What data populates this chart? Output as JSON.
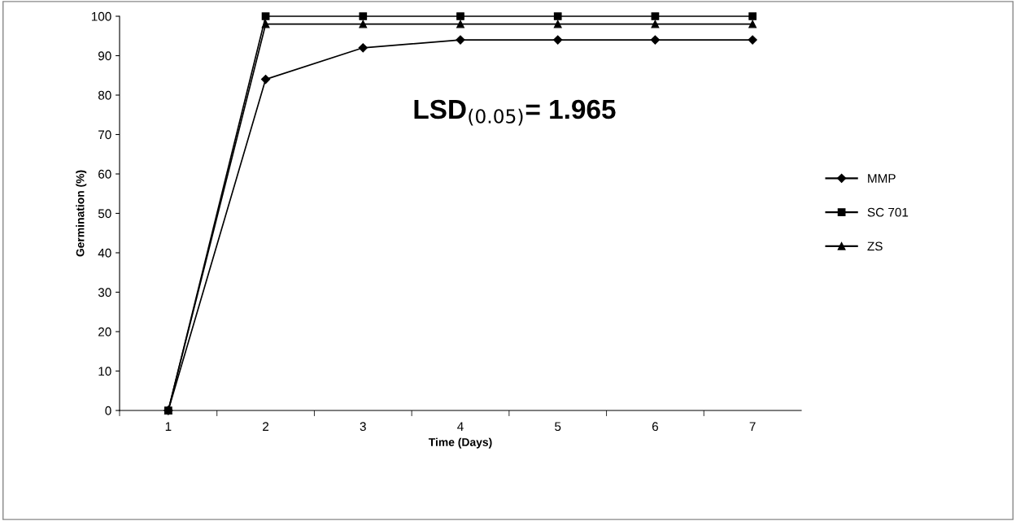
{
  "chart_data": {
    "type": "line",
    "xlabel": "Time (Days)",
    "ylabel": "Germination (%)",
    "categories": [
      "1",
      "2",
      "3",
      "4",
      "5",
      "6",
      "7"
    ],
    "series": [
      {
        "name": "MMP",
        "color": "#000000",
        "marker": "diamond",
        "values": [
          0,
          84,
          92,
          94,
          94,
          94,
          94
        ]
      },
      {
        "name": "SC 701",
        "color": "#000000",
        "marker": "square",
        "values": [
          0,
          100,
          100,
          100,
          100,
          100,
          100
        ]
      },
      {
        "name": "ZS",
        "color": "#000000",
        "marker": "triangle",
        "values": [
          0,
          98,
          98,
          98,
          98,
          98,
          98
        ]
      }
    ],
    "ylim": [
      0,
      100
    ],
    "yticks": [
      0,
      10,
      20,
      30,
      40,
      50,
      60,
      70,
      80,
      90,
      100
    ],
    "annotations": [
      "LSD$_{(0.05)}$= 1.965"
    ],
    "grid": false,
    "legend": "right",
    "line_style": "solid"
  }
}
